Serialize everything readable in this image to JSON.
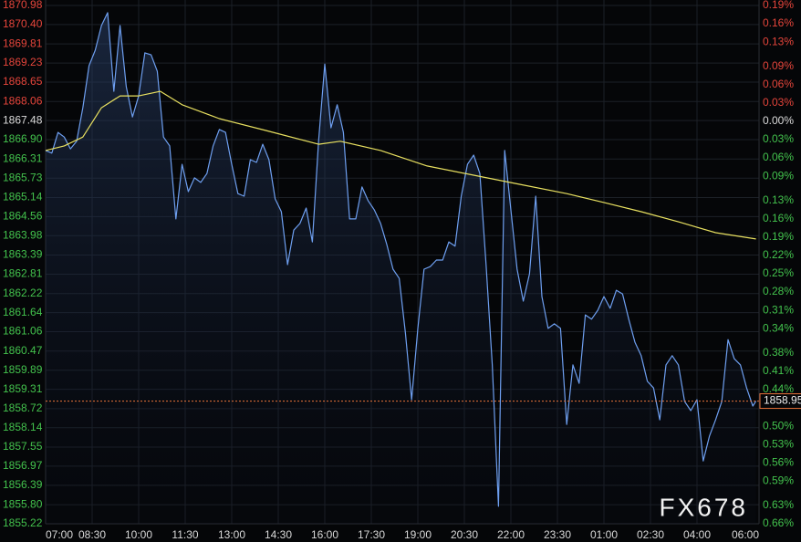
{
  "chart_data": {
    "type": "line",
    "watermark": "FX678",
    "base_price": 1867.48,
    "colors": {
      "up": "#e5453b",
      "down": "#43c24d",
      "flat": "#dcdcdc",
      "last": "#e8733a"
    },
    "grid": true,
    "xlim": [
      0,
      23
    ],
    "xticks": [
      {
        "value": 0,
        "label": "07:00"
      },
      {
        "value": 1.5,
        "label": "08:30"
      },
      {
        "value": 3,
        "label": "10:00"
      },
      {
        "value": 4.5,
        "label": "11:30"
      },
      {
        "value": 6,
        "label": "13:00"
      },
      {
        "value": 7.5,
        "label": "14:30"
      },
      {
        "value": 9,
        "label": "16:00"
      },
      {
        "value": 10.5,
        "label": "17:30"
      },
      {
        "value": 12,
        "label": "19:00"
      },
      {
        "value": 13.5,
        "label": "20:30"
      },
      {
        "value": 15,
        "label": "22:00"
      },
      {
        "value": 16.5,
        "label": "23:30"
      },
      {
        "value": 18,
        "label": "01:00"
      },
      {
        "value": 19.5,
        "label": "02:30"
      },
      {
        "value": 21,
        "label": "04:00"
      },
      {
        "value": 23,
        "label": "06:00"
      }
    ],
    "ylim": [
      1855.22,
      1870.98
    ],
    "yticks": [
      1870.98,
      {
        "value": 1870.4,
        "label": "1870.40"
      },
      1869.81,
      1869.23,
      1868.65,
      1868.06,
      1867.48,
      {
        "value": 1866.9,
        "label": "1866.90"
      },
      1866.31,
      1865.73,
      1865.14,
      1864.56,
      1863.98,
      1863.39,
      1862.81,
      1862.22,
      1861.64,
      1861.06,
      1860.47,
      1859.89,
      1859.31,
      1858.72,
      1858.14,
      1857.55,
      1856.97,
      1856.39,
      {
        "value": 1855.8,
        "label": "1855.80"
      },
      1855.22
    ],
    "y2lim": [
      -0.66,
      0.19
    ],
    "y2ticks": [
      {
        "value": 0.19,
        "label": "0.19%"
      },
      {
        "value": 0.16,
        "label": "0.16%"
      },
      {
        "value": 0.13,
        "label": "0.13%"
      },
      {
        "value": 0.09,
        "label": "0.09%"
      },
      {
        "value": 0.06,
        "label": "0.06%"
      },
      {
        "value": 0.03,
        "label": "0.03%"
      },
      {
        "value": 0,
        "label": "0.00%"
      },
      {
        "value": -0.03,
        "label": "0.03%"
      },
      {
        "value": -0.06,
        "label": "0.06%"
      },
      {
        "value": -0.09,
        "label": "0.09%"
      },
      {
        "value": -0.13,
        "label": "0.13%"
      },
      {
        "value": -0.16,
        "label": "0.16%"
      },
      {
        "value": -0.19,
        "label": "0.19%"
      },
      {
        "value": -0.22,
        "label": "0.22%"
      },
      {
        "value": -0.25,
        "label": "0.25%"
      },
      {
        "value": -0.28,
        "label": "0.28%"
      },
      {
        "value": -0.31,
        "label": "0.31%"
      },
      {
        "value": -0.34,
        "label": "0.34%"
      },
      {
        "value": -0.38,
        "label": "0.38%"
      },
      {
        "value": -0.41,
        "label": "0.41%"
      },
      {
        "value": -0.44,
        "label": "0.44%"
      },
      {
        "value": -0.5,
        "label": "0.50%"
      },
      {
        "value": -0.53,
        "label": "0.53%"
      },
      {
        "value": -0.56,
        "label": "0.56%"
      },
      {
        "value": -0.59,
        "label": "0.59%"
      },
      {
        "value": -0.63,
        "label": "0.63%"
      },
      {
        "value": -0.66,
        "label": "0.66%"
      }
    ],
    "series": [
      {
        "color": "#6e9ff0",
        "area": true,
        "x": [
          0,
          0.2,
          0.4,
          0.6,
          0.8,
          1,
          1.2,
          1.4,
          1.6,
          1.8,
          2,
          2.2,
          2.4,
          2.6,
          2.8,
          3,
          3.2,
          3.4,
          3.6,
          3.8,
          4,
          4.2,
          4.4,
          4.6,
          4.8,
          5,
          5.2,
          5.4,
          5.6,
          5.8,
          6,
          6.2,
          6.4,
          6.6,
          6.8,
          7,
          7.2,
          7.4,
          7.6,
          7.8,
          8,
          8.2,
          8.4,
          8.6,
          8.8,
          9,
          9.2,
          9.4,
          9.6,
          9.8,
          10,
          10.2,
          10.4,
          10.6,
          10.8,
          11,
          11.2,
          11.4,
          11.6,
          11.8,
          12,
          12.2,
          12.4,
          12.6,
          12.8,
          13,
          13.2,
          13.4,
          13.6,
          13.8,
          14,
          14.2,
          14.4,
          14.6,
          14.8,
          15,
          15.2,
          15.4,
          15.6,
          15.8,
          16,
          16.2,
          16.4,
          16.6,
          16.8,
          17,
          17.2,
          17.4,
          17.6,
          17.8,
          18,
          18.2,
          18.4,
          18.6,
          18.8,
          19,
          19.2,
          19.4,
          19.6,
          19.8,
          20,
          20.2,
          20.4,
          20.6,
          20.8,
          21,
          21.2,
          21.4,
          21.6,
          21.8,
          22,
          22.2,
          22.4,
          22.6,
          22.8,
          22.9
        ],
        "values": [
          1866.57,
          1866.49,
          1867.12,
          1866.98,
          1866.62,
          1866.85,
          1867.87,
          1869.15,
          1869.62,
          1870.37,
          1870.76,
          1868.37,
          1870.37,
          1868.51,
          1867.59,
          1868.23,
          1869.54,
          1869.48,
          1868.98,
          1866.98,
          1866.71,
          1864.49,
          1866.15,
          1865.32,
          1865.74,
          1865.6,
          1865.87,
          1866.71,
          1867.21,
          1867.12,
          1866.15,
          1865.26,
          1865.18,
          1866.29,
          1866.21,
          1866.76,
          1866.29,
          1865.1,
          1864.71,
          1863.1,
          1864.15,
          1864.35,
          1864.82,
          1863.79,
          1866.85,
          1869.2,
          1867.26,
          1867.96,
          1867.12,
          1864.49,
          1864.49,
          1865.46,
          1865.04,
          1864.76,
          1864.35,
          1863.71,
          1862.96,
          1862.68,
          1861.02,
          1858.99,
          1861.16,
          1862.96,
          1863.04,
          1863.24,
          1863.24,
          1863.79,
          1863.66,
          1865.18,
          1866.15,
          1866.43,
          1865.87,
          1863.1,
          1860.05,
          1855.75,
          1866.57,
          1864.76,
          1862.96,
          1861.99,
          1862.82,
          1865.18,
          1862.13,
          1861.16,
          1861.3,
          1861.16,
          1858.24,
          1860.05,
          1859.49,
          1861.57,
          1861.44,
          1861.71,
          1862.13,
          1861.77,
          1862.32,
          1862.21,
          1861.44,
          1860.74,
          1860.33,
          1859.55,
          1859.35,
          1858.38,
          1860.05,
          1860.33,
          1860.05,
          1858.94,
          1858.66,
          1858.99,
          1857.13,
          1857.88,
          1858.38,
          1858.94,
          1860.82,
          1860.24,
          1860.05,
          1859.35,
          1858.8,
          1858.95
        ]
      },
      {
        "color": "#e8e060",
        "x": [
          0,
          0.6,
          1.2,
          1.8,
          2.4,
          3,
          3.7,
          4.4,
          5.6,
          7.1,
          8.8,
          9.5,
          10.8,
          12.3,
          13.8,
          15.3,
          16.8,
          18,
          19.2,
          20.4,
          21.6,
          22.9
        ],
        "values": [
          1866.57,
          1866.71,
          1866.98,
          1867.87,
          1868.23,
          1868.23,
          1868.37,
          1867.96,
          1867.54,
          1867.18,
          1866.76,
          1866.85,
          1866.57,
          1866.1,
          1865.82,
          1865.54,
          1865.26,
          1864.99,
          1864.71,
          1864.4,
          1864.07,
          1863.88
        ]
      }
    ]
  }
}
